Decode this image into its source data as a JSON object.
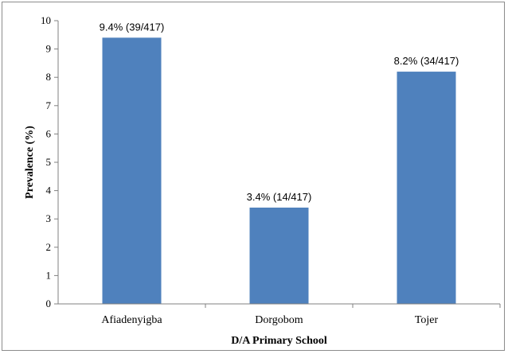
{
  "chart_data": {
    "type": "bar",
    "categories": [
      "Afiadenyigba",
      "Dorgobom",
      "Tojer"
    ],
    "values": [
      9.4,
      3.4,
      8.2
    ],
    "data_labels": [
      "9.4% (39/417)",
      "3.4% (14/417)",
      "8.2% (34/417)"
    ],
    "xlabel": "D/A Primary School",
    "ylabel": "Prevalence (%)",
    "ylim": [
      0,
      10
    ],
    "yticks": [
      "0",
      "1",
      "2",
      "3",
      "4",
      "5",
      "6",
      "7",
      "8",
      "9",
      "10"
    ],
    "bar_color": "#4f81bd",
    "grid": false,
    "legend": "none"
  }
}
